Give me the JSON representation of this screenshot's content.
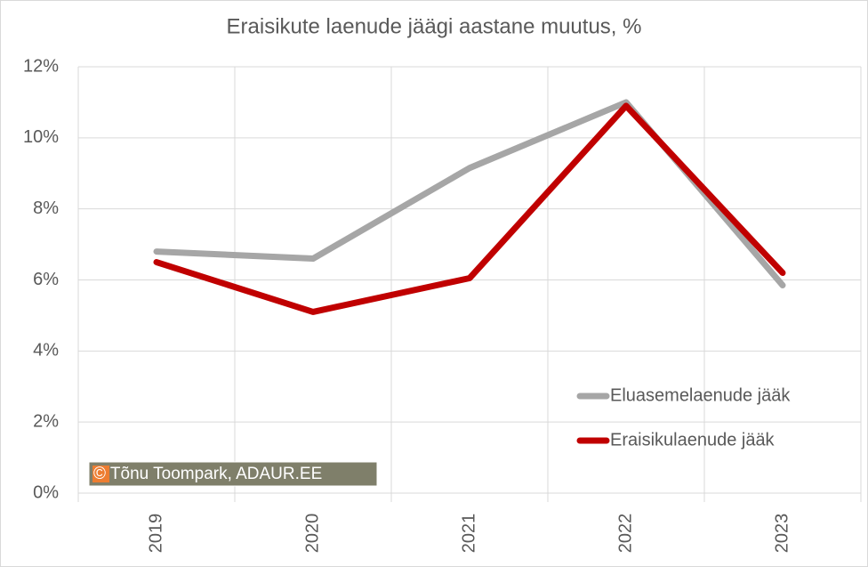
{
  "chart_data": {
    "type": "line",
    "title": "Eraisikute laenude jäägi aastane muutus, %",
    "categories": [
      "2019",
      "2020",
      "2021",
      "2022",
      "2023"
    ],
    "series": [
      {
        "name": "Eluasemelaenude jääk",
        "color": "#a6a6a6",
        "values": [
          6.8,
          6.6,
          9.15,
          11.0,
          5.85
        ]
      },
      {
        "name": "Eraisikulaenude jääk",
        "color": "#c00000",
        "values": [
          6.5,
          5.1,
          6.05,
          10.9,
          6.2
        ]
      }
    ],
    "ylim": [
      0,
      12
    ],
    "yticks": [
      {
        "value": 0,
        "label": "0%"
      },
      {
        "value": 2,
        "label": "2%"
      },
      {
        "value": 4,
        "label": "4%"
      },
      {
        "value": 6,
        "label": "6%"
      },
      {
        "value": 8,
        "label": "8%"
      },
      {
        "value": 10,
        "label": "10%"
      },
      {
        "value": 12,
        "label": "12%"
      }
    ],
    "grid": true,
    "legend": "lower right",
    "annotation": "© Tõnu Toompark, ADAUR.EE"
  }
}
